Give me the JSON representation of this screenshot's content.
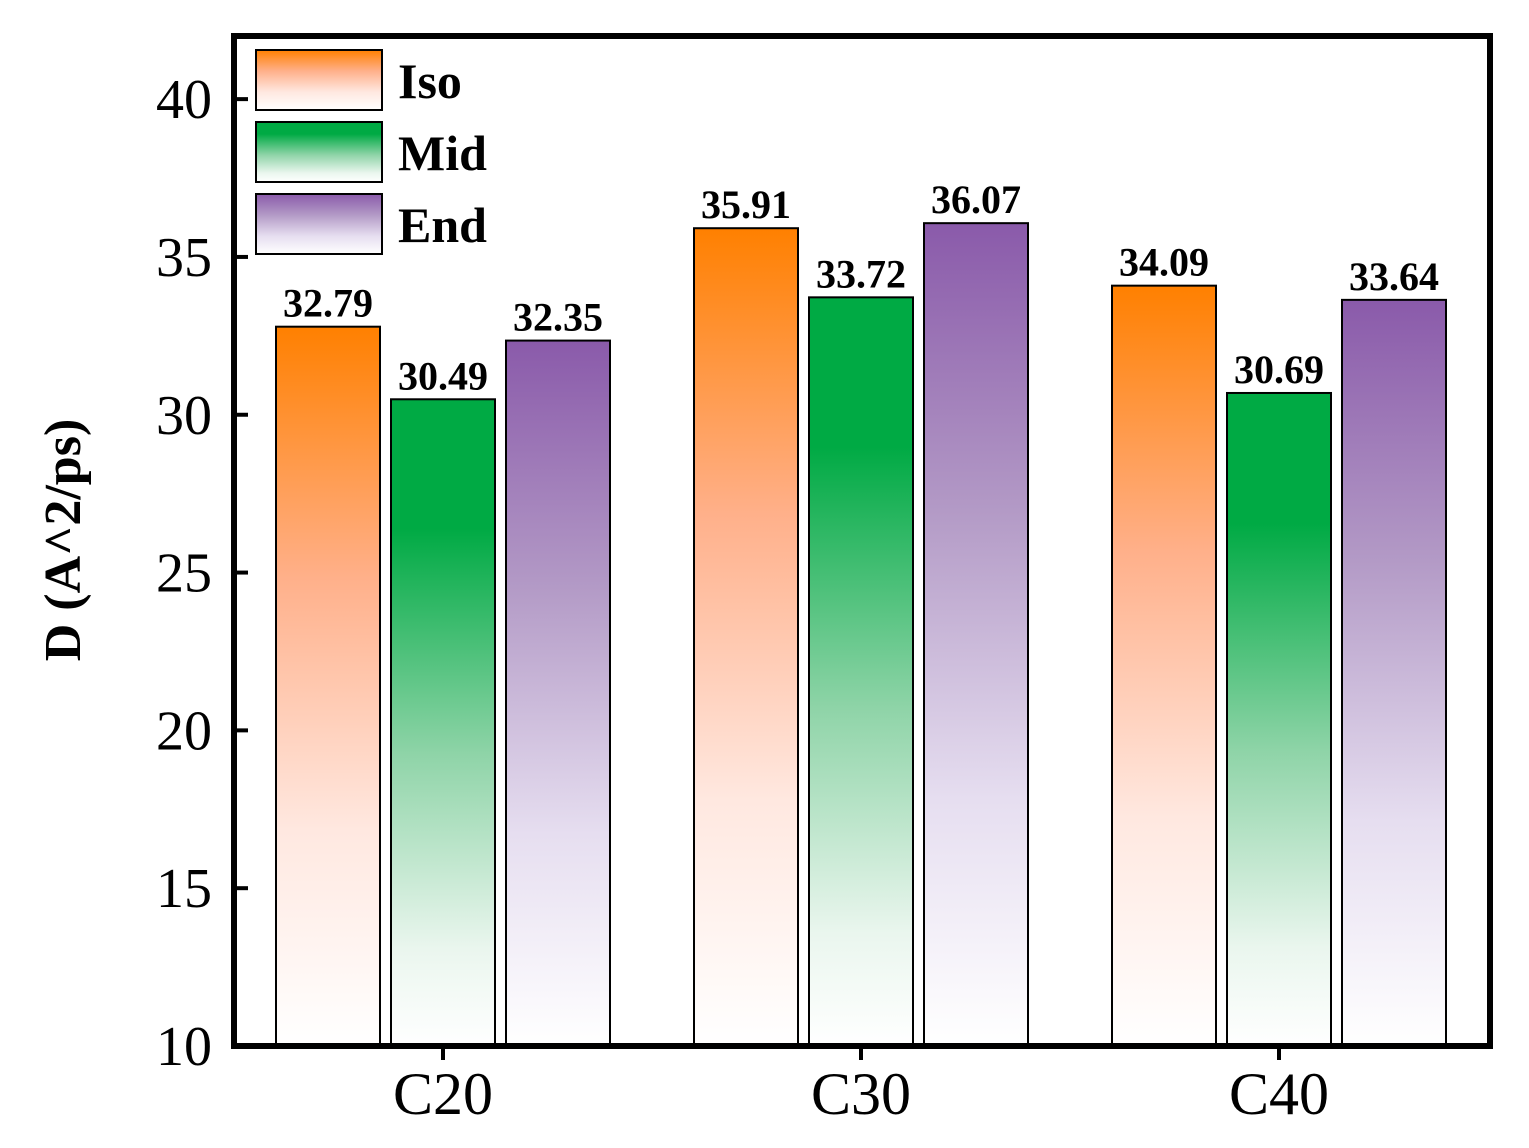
{
  "chart_data": {
    "type": "bar",
    "title": "",
    "xlabel": "",
    "ylabel": "D (A^2/ps)",
    "categories": [
      "C20",
      "C30",
      "C40"
    ],
    "ylim": [
      10,
      42
    ],
    "yticks": [
      10,
      15,
      20,
      25,
      30,
      35,
      40
    ],
    "ytick_labels": [
      "10",
      "15",
      "20",
      "25",
      "30",
      "35",
      "40"
    ],
    "series": [
      {
        "name": "Iso",
        "color": "#ff8000",
        "values": [
          32.79,
          35.91,
          34.09
        ],
        "labels": [
          "32.79",
          "35.91",
          "34.09"
        ]
      },
      {
        "name": "Mid",
        "color": "#00aa44",
        "values": [
          30.49,
          33.72,
          30.69
        ],
        "labels": [
          "30.49",
          "33.72",
          "30.69"
        ]
      },
      {
        "name": "End",
        "color": "#8a5aaa",
        "values": [
          32.35,
          36.07,
          33.64
        ],
        "labels": [
          "32.35",
          "36.07",
          "33.64"
        ]
      }
    ],
    "legend_position": "top-left",
    "grid": false
  }
}
